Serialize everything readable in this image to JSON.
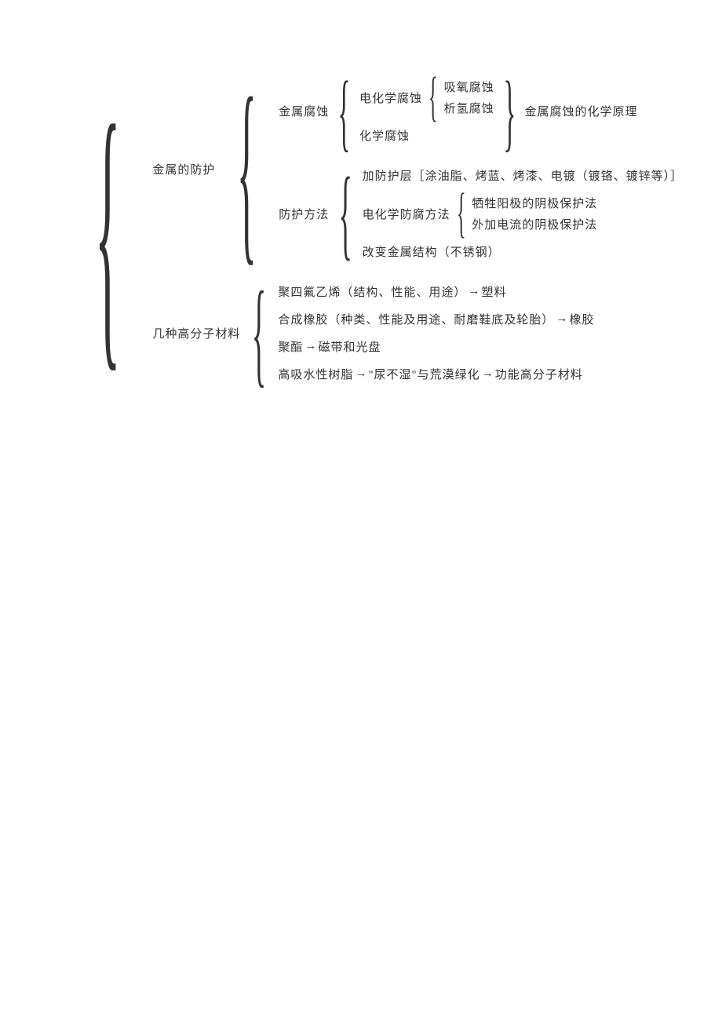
{
  "colors": {
    "text": "#333333",
    "background": "#ffffff"
  },
  "fontsize": 15,
  "root": {
    "branches": [
      {
        "label": "金属的防护",
        "children": [
          {
            "label": "金属腐蚀",
            "children": [
              {
                "label": "电化学腐蚀",
                "children": [
                  {
                    "label": "吸氧腐蚀"
                  },
                  {
                    "label": "析氢腐蚀"
                  }
                ]
              },
              {
                "label": "化学腐蚀"
              }
            ],
            "right_note": "金属腐蚀的化学原理"
          },
          {
            "label": "防护方法",
            "children": [
              {
                "label": "加防护层［涂油脂、烤蓝、烤漆、电镀（镀铬、镀锌等）］"
              },
              {
                "label": "电化学防腐方法",
                "children": [
                  {
                    "label": "牺牲阳极的阴极保护法"
                  },
                  {
                    "label": "外加电流的阴极保护法"
                  }
                ]
              },
              {
                "label": "改变金属结构（不锈钢）"
              }
            ]
          }
        ]
      },
      {
        "label": "几种高分子材料",
        "children": [
          {
            "label": "聚四氟乙烯（结构、性能、用途）",
            "arrow_to": "塑料"
          },
          {
            "label": "合成橡胶（种类、性能及用途、耐磨鞋底及轮胎）",
            "arrow_to": "橡胶"
          },
          {
            "label": "聚酯",
            "arrow_to": "磁带和光盘"
          },
          {
            "label": "高吸水性树脂",
            "arrow_to": "\"尿不湿\"与荒漠绿化",
            "arrow_to2": "功能高分子材料"
          }
        ]
      }
    ]
  }
}
